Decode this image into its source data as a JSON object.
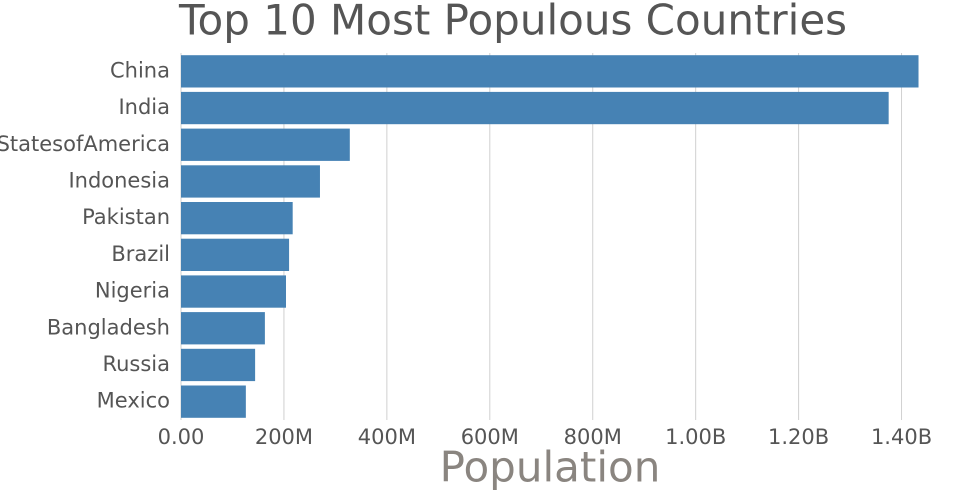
{
  "chart_data": {
    "type": "barh",
    "title": "Top 10 Most Populous Countries",
    "x_label": "Population",
    "categories": [
      "China",
      "India",
      "UnitedStatesofAmerica",
      "Indonesia",
      "Pakistan",
      "Brazil",
      "Nigeria",
      "Bangladesh",
      "Russia",
      "Mexico"
    ],
    "values": [
      1433000000,
      1375000000,
      328000000,
      270000000,
      217000000,
      210000000,
      204000000,
      163000000,
      144000000,
      126000000
    ],
    "color": "#4682b4",
    "xlim": [
      0,
      1500000000
    ],
    "xticks": [
      {
        "value": 0,
        "label": "0.00"
      },
      {
        "value": 200000000,
        "label": "200M"
      },
      {
        "value": 400000000,
        "label": "400M"
      },
      {
        "value": 600000000,
        "label": "600M"
      },
      {
        "value": 800000000,
        "label": "800M"
      },
      {
        "value": 1000000000,
        "label": "1.00B"
      },
      {
        "value": 1200000000,
        "label": "1.20B"
      },
      {
        "value": 1400000000,
        "label": "1.40B"
      }
    ],
    "grid": true
  }
}
